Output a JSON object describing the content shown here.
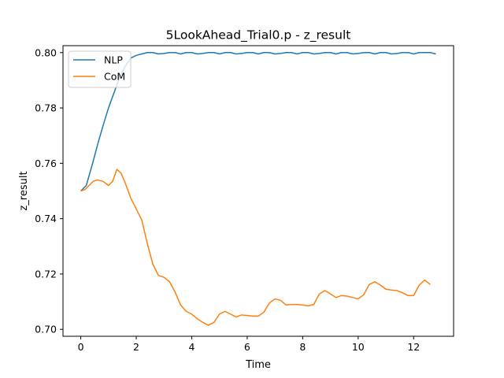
{
  "chart_data": {
    "type": "line",
    "title": "5LookAhead_Trial0.p - z_result",
    "xlabel": "Time",
    "ylabel": "z_result",
    "xlim": [
      -0.64,
      13.44
    ],
    "ylim": [
      0.6975,
      0.8025
    ],
    "x_ticks": [
      0,
      2,
      4,
      6,
      8,
      10,
      12
    ],
    "y_ticks": [
      0.7,
      0.72,
      0.74,
      0.76,
      0.78,
      0.8
    ],
    "y_tick_labels": [
      "0.70",
      "0.72",
      "0.74",
      "0.76",
      "0.78",
      "0.80"
    ],
    "grid": false,
    "legend_position": "top-left",
    "series": [
      {
        "name": "NLP",
        "color": "#1f77b4",
        "x": [
          0,
          0.2,
          0.4,
          0.6,
          0.8,
          1.0,
          1.2,
          1.4,
          1.6,
          1.8,
          2.0,
          2.2,
          2.4,
          2.6,
          2.8,
          3.0,
          3.2,
          3.4,
          3.6,
          3.8,
          4.0,
          4.2,
          4.4,
          4.6,
          4.8,
          5.0,
          5.2,
          5.4,
          5.6,
          5.8,
          6.0,
          6.2,
          6.4,
          6.6,
          6.8,
          7.0,
          7.2,
          7.4,
          7.6,
          7.8,
          8.0,
          8.2,
          8.4,
          8.6,
          8.8,
          9.0,
          9.2,
          9.4,
          9.6,
          9.8,
          10.0,
          10.2,
          10.4,
          10.6,
          10.8,
          11.0,
          11.2,
          11.4,
          11.6,
          11.8,
          12.0,
          12.2,
          12.4,
          12.6,
          12.8
        ],
        "y": [
          0.75,
          0.752,
          0.759,
          0.7665,
          0.7735,
          0.78,
          0.7855,
          0.791,
          0.795,
          0.798,
          0.799,
          0.7995,
          0.8,
          0.8,
          0.7995,
          0.7997,
          0.8,
          0.8,
          0.7995,
          0.8,
          0.8,
          0.7995,
          0.7997,
          0.8,
          0.8,
          0.7995,
          0.8,
          0.8,
          0.7995,
          0.7997,
          0.8,
          0.8,
          0.7995,
          0.8,
          0.8,
          0.7995,
          0.7997,
          0.8,
          0.8,
          0.7995,
          0.8,
          0.8,
          0.7995,
          0.7997,
          0.8,
          0.8,
          0.7995,
          0.8,
          0.8,
          0.7995,
          0.7997,
          0.8,
          0.8,
          0.7995,
          0.8,
          0.8,
          0.7995,
          0.7997,
          0.8,
          0.8,
          0.7995,
          0.8,
          0.8,
          0.8,
          0.7995
        ]
      },
      {
        "name": "CoM",
        "color": "#ff7f0e",
        "x": [
          0,
          0.15,
          0.3,
          0.45,
          0.6,
          0.8,
          1.0,
          1.15,
          1.3,
          1.45,
          1.6,
          1.8,
          2.0,
          2.2,
          2.4,
          2.6,
          2.8,
          3.0,
          3.2,
          3.4,
          3.6,
          3.8,
          4.0,
          4.2,
          4.4,
          4.6,
          4.8,
          5.0,
          5.2,
          5.4,
          5.6,
          5.8,
          6.0,
          6.2,
          6.4,
          6.6,
          6.8,
          7.0,
          7.2,
          7.4,
          7.6,
          7.8,
          8.0,
          8.2,
          8.4,
          8.6,
          8.8,
          9.0,
          9.2,
          9.4,
          9.6,
          9.8,
          10.0,
          10.2,
          10.4,
          10.6,
          10.8,
          11.0,
          11.2,
          11.4,
          11.6,
          11.8,
          12.0,
          12.2,
          12.4,
          12.6
        ],
        "y": [
          0.75,
          0.7505,
          0.752,
          0.7535,
          0.754,
          0.7535,
          0.752,
          0.7535,
          0.7578,
          0.7565,
          0.753,
          0.7475,
          0.7435,
          0.7395,
          0.731,
          0.7235,
          0.7195,
          0.7188,
          0.7172,
          0.7135,
          0.7088,
          0.7065,
          0.7055,
          0.7038,
          0.7025,
          0.7015,
          0.7025,
          0.7055,
          0.7065,
          0.7055,
          0.7045,
          0.7052,
          0.705,
          0.7048,
          0.7048,
          0.7062,
          0.7095,
          0.711,
          0.7105,
          0.7088,
          0.709,
          0.709,
          0.7088,
          0.7085,
          0.709,
          0.7128,
          0.714,
          0.7128,
          0.7115,
          0.7122,
          0.712,
          0.7115,
          0.711,
          0.7125,
          0.7162,
          0.7172,
          0.716,
          0.7145,
          0.7142,
          0.714,
          0.7132,
          0.7122,
          0.7122,
          0.716,
          0.7178,
          0.7162
        ]
      }
    ]
  }
}
